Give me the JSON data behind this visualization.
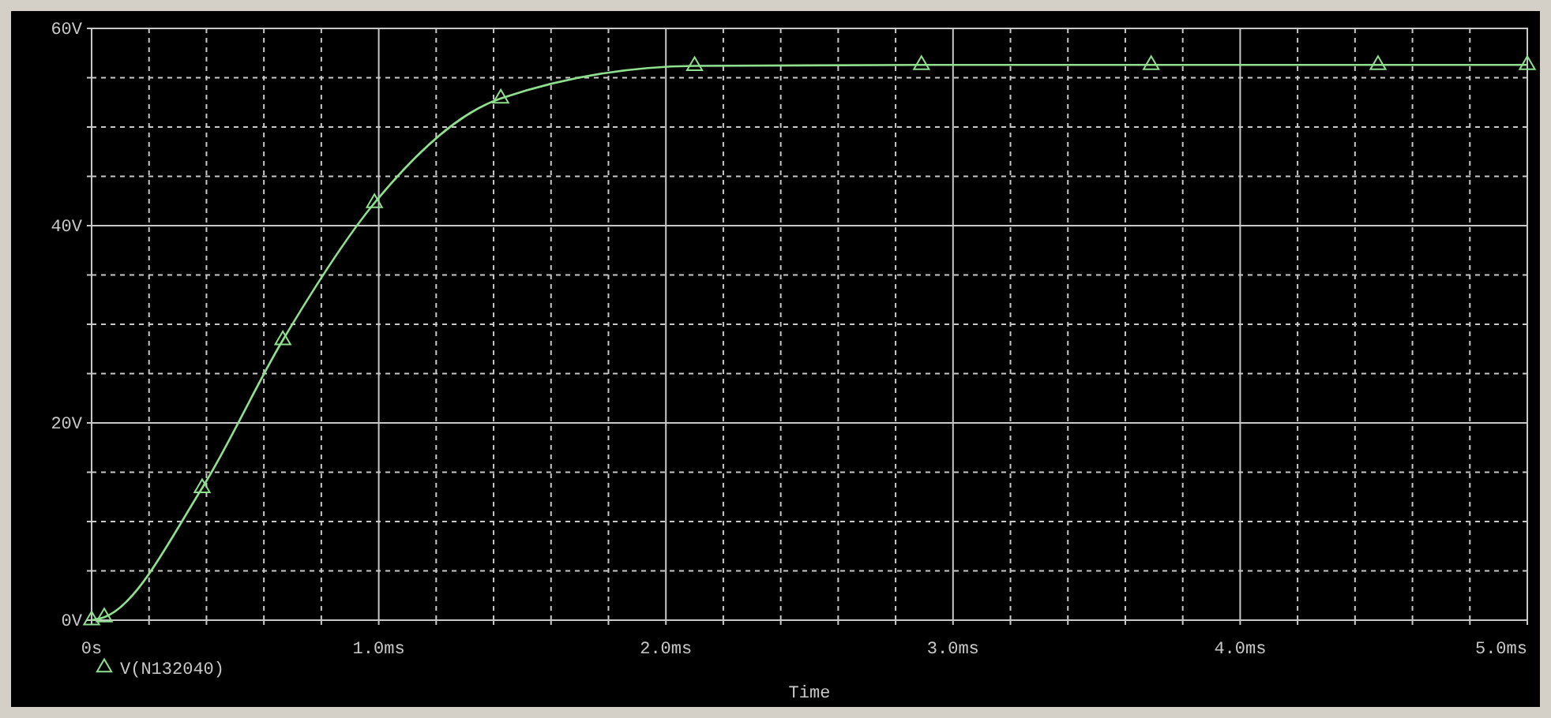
{
  "chart_data": {
    "type": "line",
    "xlabel": "Time",
    "x": [
      0,
      0.044,
      0.385,
      0.666,
      0.985,
      1.425,
      2.1,
      2.89,
      3.69,
      4.48,
      5.0
    ],
    "series": [
      {
        "name": "V(N132040)",
        "color": "#8ee08e",
        "values": [
          0,
          0.3,
          13.4,
          28.4,
          42.3,
          52.9,
          56.2,
          56.3,
          56.3,
          56.3,
          56.3
        ]
      }
    ],
    "xlim": [
      0,
      5.0
    ],
    "xticks": [
      {
        "value": 0,
        "label": "0s"
      },
      {
        "value": 0.2,
        "label": null
      },
      {
        "value": 0.4,
        "label": null
      },
      {
        "value": 0.6,
        "label": null
      },
      {
        "value": 0.8,
        "label": null
      },
      {
        "value": 1.0,
        "label": "1.0ms"
      },
      {
        "value": 1.2,
        "label": null
      },
      {
        "value": 1.4,
        "label": null
      },
      {
        "value": 1.6,
        "label": null
      },
      {
        "value": 1.8,
        "label": null
      },
      {
        "value": 2.0,
        "label": "2.0ms"
      },
      {
        "value": 2.2,
        "label": null
      },
      {
        "value": 2.4,
        "label": null
      },
      {
        "value": 2.6,
        "label": null
      },
      {
        "value": 2.8,
        "label": null
      },
      {
        "value": 3.0,
        "label": "3.0ms"
      },
      {
        "value": 3.2,
        "label": null
      },
      {
        "value": 3.4,
        "label": null
      },
      {
        "value": 3.6,
        "label": null
      },
      {
        "value": 3.8,
        "label": null
      },
      {
        "value": 4.0,
        "label": "4.0ms"
      },
      {
        "value": 4.2,
        "label": null
      },
      {
        "value": 4.4,
        "label": null
      },
      {
        "value": 4.6,
        "label": null
      },
      {
        "value": 4.8,
        "label": null
      },
      {
        "value": 5.0,
        "label": "5.0ms"
      }
    ],
    "ylim": [
      0,
      60
    ],
    "yticks": [
      {
        "value": 0,
        "label": "0V"
      },
      {
        "value": 5,
        "label": null
      },
      {
        "value": 10,
        "label": null
      },
      {
        "value": 15,
        "label": null
      },
      {
        "value": 20,
        "label": "20V"
      },
      {
        "value": 25,
        "label": null
      },
      {
        "value": 30,
        "label": null
      },
      {
        "value": 35,
        "label": null
      },
      {
        "value": 40,
        "label": "40V"
      },
      {
        "value": 45,
        "label": null
      },
      {
        "value": 50,
        "label": null
      },
      {
        "value": 55,
        "label": null
      },
      {
        "value": 60,
        "label": "60V"
      }
    ],
    "grid": true,
    "legend": "bottom left",
    "marker": "triangle",
    "line_style": "solid"
  }
}
